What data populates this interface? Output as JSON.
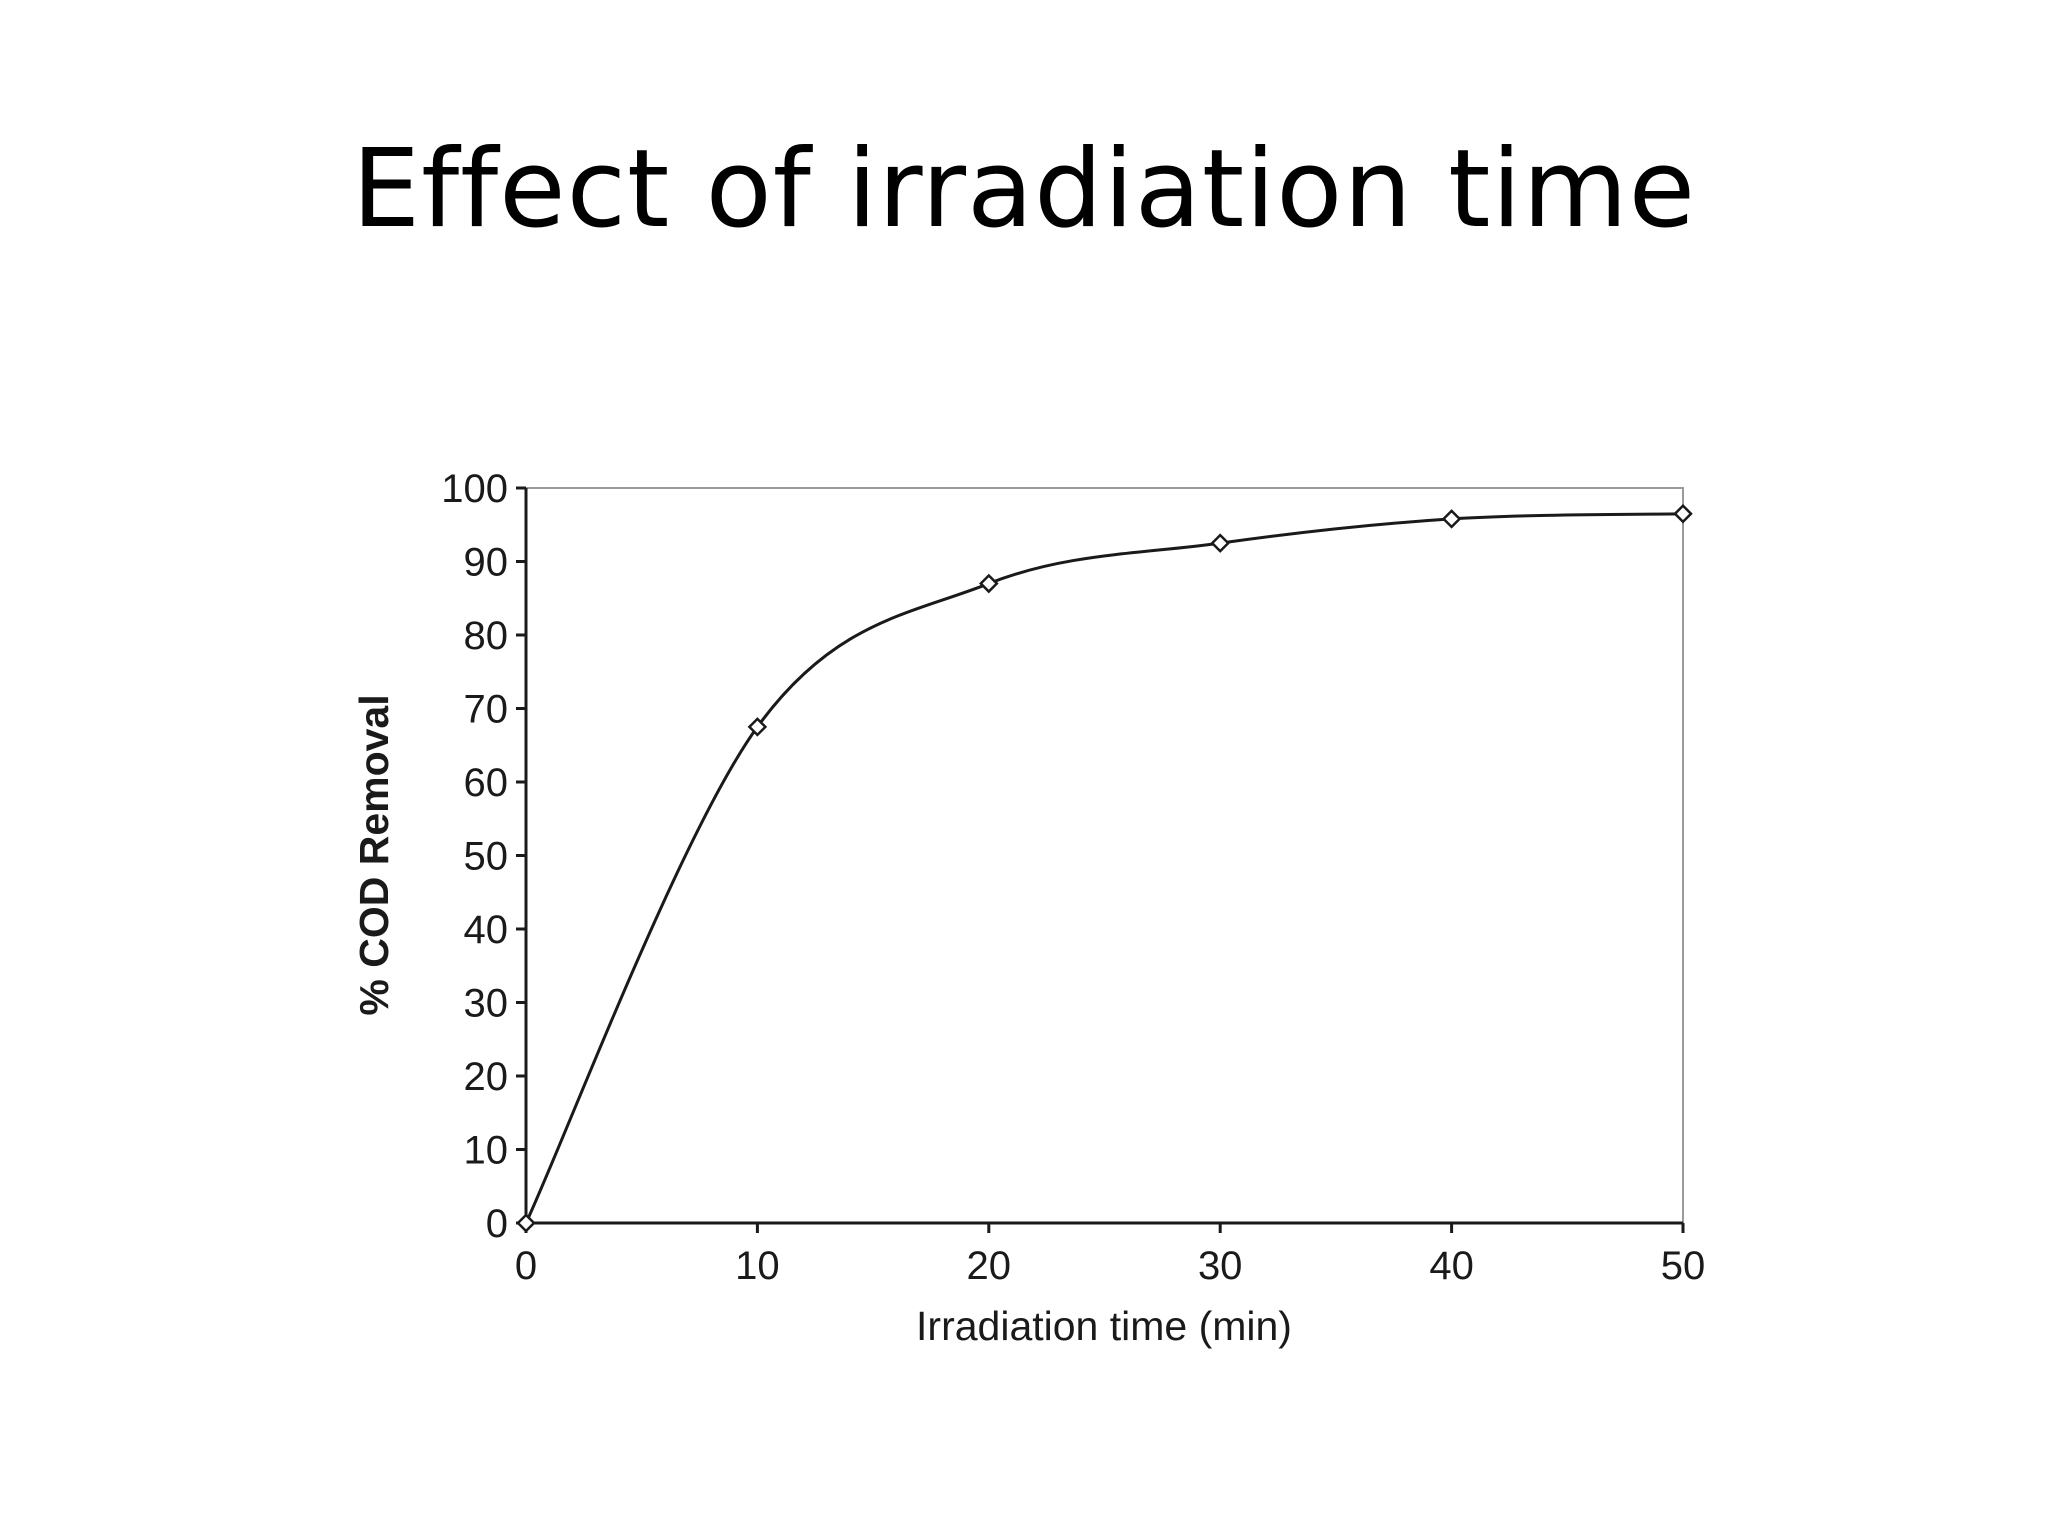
{
  "slide": {
    "title": "Effect of irradiation time"
  },
  "chart_data": {
    "type": "line",
    "title": "",
    "xlabel": "Irradiation time (min)",
    "ylabel": "% COD Removal",
    "xlim": [
      0,
      50
    ],
    "ylim": [
      0,
      100
    ],
    "x_ticks": [
      0,
      10,
      20,
      30,
      40,
      50
    ],
    "y_ticks": [
      0,
      10,
      20,
      30,
      40,
      50,
      60,
      70,
      80,
      90,
      100
    ],
    "grid": false,
    "legend": "none",
    "marker": "diamond",
    "line_style": "smoothed",
    "series": [
      {
        "x": [
          0,
          10,
          20,
          30,
          40,
          50
        ],
        "y": [
          0,
          67.5,
          87,
          92.5,
          95.8,
          96.5
        ]
      }
    ],
    "colors": {
      "line": "#1a1a1a",
      "frame": "#9a9a9a",
      "axis": "#1a1a1a"
    }
  }
}
